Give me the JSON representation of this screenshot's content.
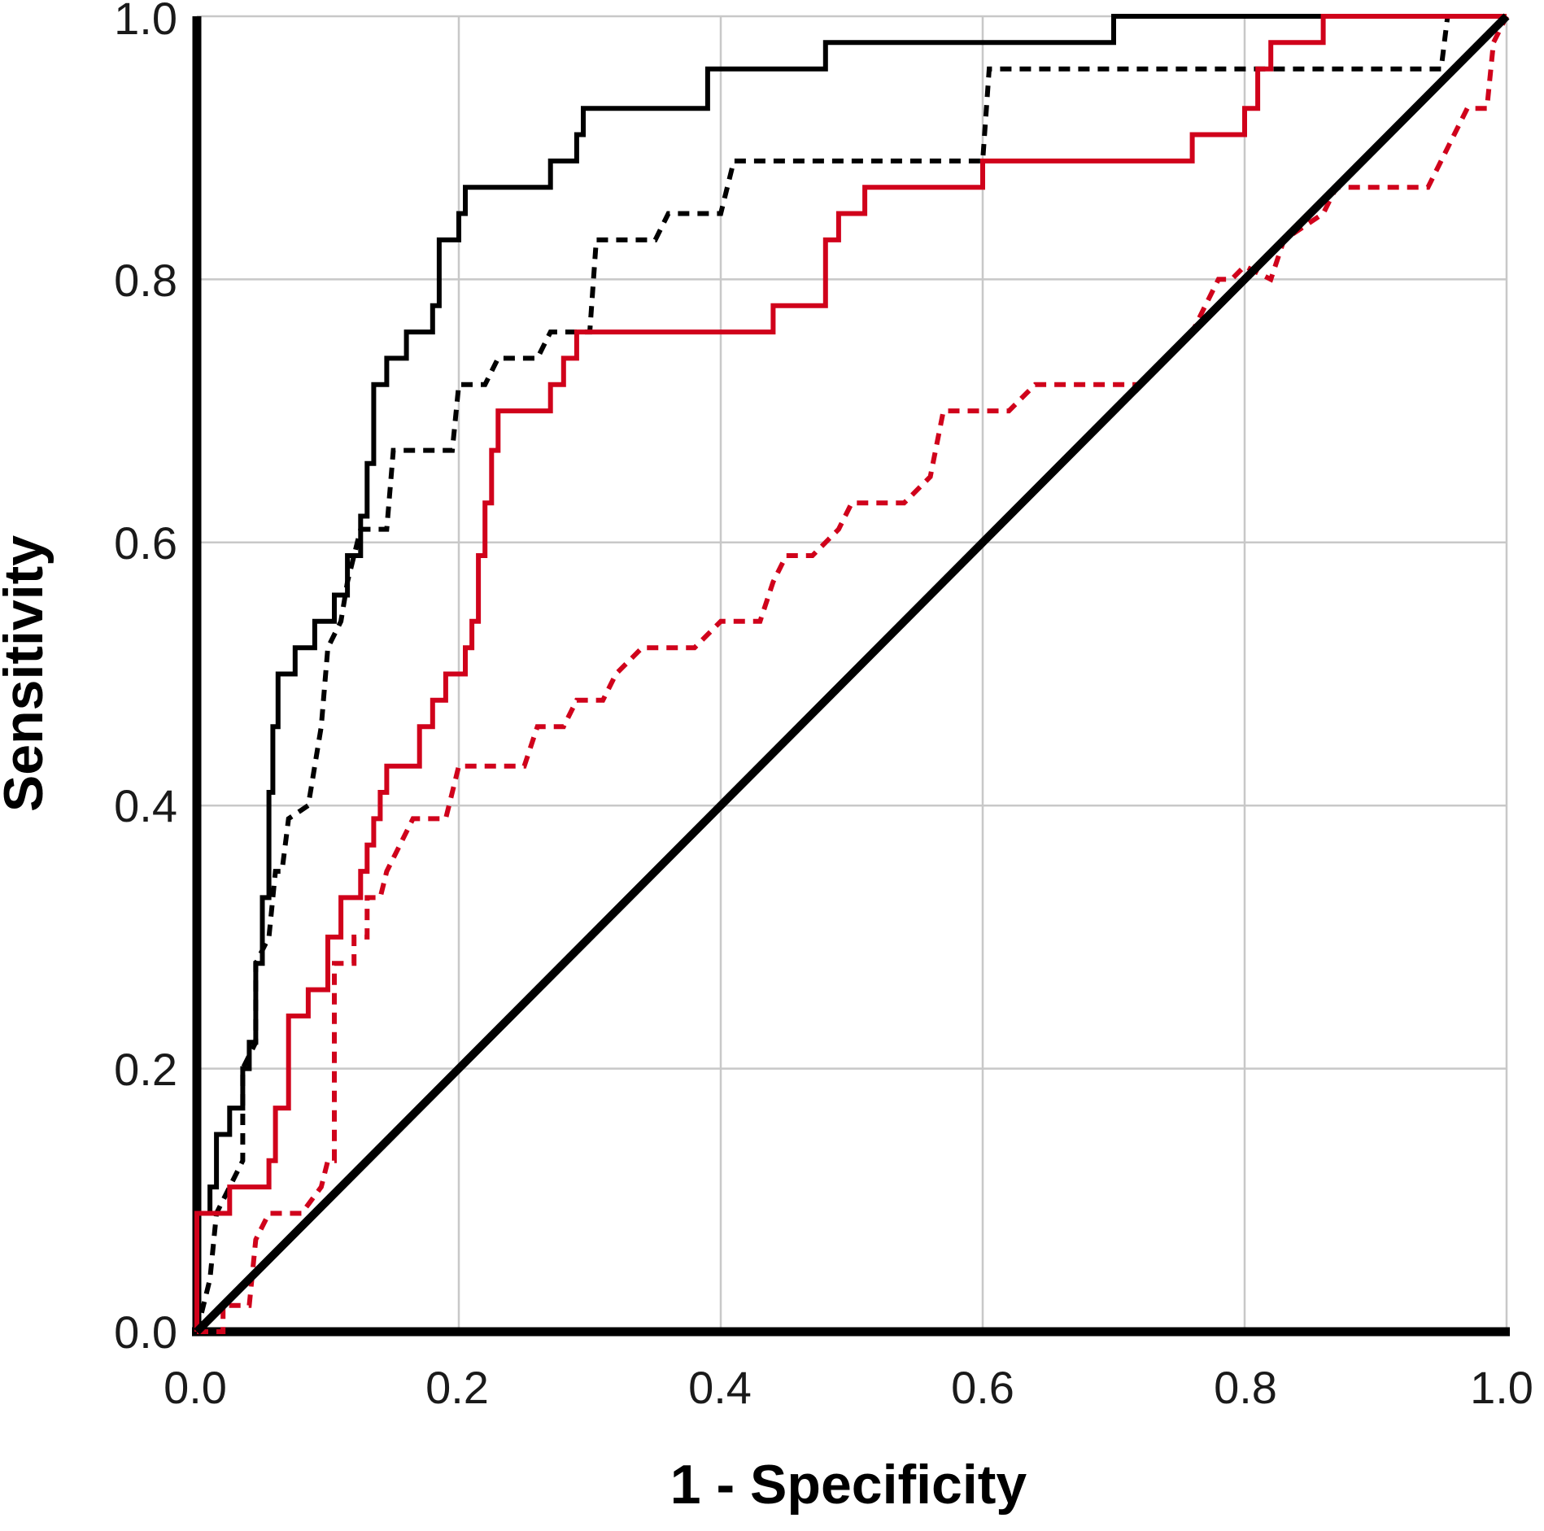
{
  "chart_data": {
    "type": "line",
    "title": "",
    "xlabel": "1 - Specificity",
    "ylabel": "Sensitivity",
    "xlim": [
      0,
      1
    ],
    "ylim": [
      0,
      1
    ],
    "x_ticks": [
      "0.0",
      "0.2",
      "0.4",
      "0.6",
      "0.8",
      "1.0"
    ],
    "y_ticks": [
      "0.0",
      "0.2",
      "0.4",
      "0.6",
      "0.8",
      "1.0"
    ],
    "grid": true,
    "legend": "none",
    "series": [
      {
        "color": "#000000",
        "line_style": "solid",
        "points": [
          [
            0,
            0
          ],
          [
            0,
            0.09
          ],
          [
            0.01,
            0.09
          ],
          [
            0.01,
            0.11
          ],
          [
            0.015,
            0.11
          ],
          [
            0.015,
            0.15
          ],
          [
            0.025,
            0.15
          ],
          [
            0.025,
            0.17
          ],
          [
            0.035,
            0.17
          ],
          [
            0.035,
            0.2
          ],
          [
            0.04,
            0.2
          ],
          [
            0.04,
            0.22
          ],
          [
            0.045,
            0.22
          ],
          [
            0.045,
            0.28
          ],
          [
            0.05,
            0.28
          ],
          [
            0.05,
            0.33
          ],
          [
            0.055,
            0.33
          ],
          [
            0.055,
            0.41
          ],
          [
            0.058,
            0.41
          ],
          [
            0.058,
            0.46
          ],
          [
            0.062,
            0.46
          ],
          [
            0.062,
            0.5
          ],
          [
            0.075,
            0.5
          ],
          [
            0.075,
            0.52
          ],
          [
            0.09,
            0.52
          ],
          [
            0.09,
            0.54
          ],
          [
            0.105,
            0.54
          ],
          [
            0.105,
            0.56
          ],
          [
            0.115,
            0.56
          ],
          [
            0.115,
            0.59
          ],
          [
            0.125,
            0.59
          ],
          [
            0.125,
            0.62
          ],
          [
            0.13,
            0.62
          ],
          [
            0.13,
            0.66
          ],
          [
            0.135,
            0.66
          ],
          [
            0.135,
            0.72
          ],
          [
            0.145,
            0.72
          ],
          [
            0.145,
            0.74
          ],
          [
            0.16,
            0.74
          ],
          [
            0.16,
            0.76
          ],
          [
            0.18,
            0.76
          ],
          [
            0.18,
            0.78
          ],
          [
            0.185,
            0.78
          ],
          [
            0.185,
            0.83
          ],
          [
            0.2,
            0.83
          ],
          [
            0.2,
            0.85
          ],
          [
            0.205,
            0.85
          ],
          [
            0.205,
            0.87
          ],
          [
            0.27,
            0.87
          ],
          [
            0.27,
            0.89
          ],
          [
            0.29,
            0.89
          ],
          [
            0.29,
            0.91
          ],
          [
            0.295,
            0.91
          ],
          [
            0.295,
            0.93
          ],
          [
            0.39,
            0.93
          ],
          [
            0.39,
            0.96
          ],
          [
            0.48,
            0.96
          ],
          [
            0.48,
            0.98
          ],
          [
            0.7,
            0.98
          ],
          [
            0.7,
            1.0
          ],
          [
            1.0,
            1.0
          ]
        ]
      },
      {
        "color": "#000000",
        "line_style": "dashed",
        "points": [
          [
            0,
            0
          ],
          [
            0.005,
            0.02
          ],
          [
            0.01,
            0.04
          ],
          [
            0.015,
            0.09
          ],
          [
            0.025,
            0.11
          ],
          [
            0.035,
            0.13
          ],
          [
            0.035,
            0.2
          ],
          [
            0.045,
            0.22
          ],
          [
            0.045,
            0.28
          ],
          [
            0.055,
            0.3
          ],
          [
            0.06,
            0.35
          ],
          [
            0.065,
            0.35
          ],
          [
            0.07,
            0.39
          ],
          [
            0.085,
            0.4
          ],
          [
            0.095,
            0.46
          ],
          [
            0.1,
            0.52
          ],
          [
            0.11,
            0.54
          ],
          [
            0.115,
            0.57
          ],
          [
            0.12,
            0.59
          ],
          [
            0.125,
            0.61
          ],
          [
            0.145,
            0.61
          ],
          [
            0.15,
            0.67
          ],
          [
            0.195,
            0.67
          ],
          [
            0.2,
            0.72
          ],
          [
            0.22,
            0.72
          ],
          [
            0.23,
            0.74
          ],
          [
            0.26,
            0.74
          ],
          [
            0.27,
            0.76
          ],
          [
            0.3,
            0.76
          ],
          [
            0.305,
            0.83
          ],
          [
            0.35,
            0.83
          ],
          [
            0.36,
            0.85
          ],
          [
            0.4,
            0.85
          ],
          [
            0.41,
            0.89
          ],
          [
            0.6,
            0.89
          ],
          [
            0.605,
            0.96
          ],
          [
            0.95,
            0.96
          ],
          [
            0.955,
            1.0
          ],
          [
            1.0,
            1.0
          ]
        ]
      },
      {
        "color": "#d0021b",
        "line_style": "solid",
        "points": [
          [
            0,
            0
          ],
          [
            0,
            0.09
          ],
          [
            0.025,
            0.09
          ],
          [
            0.025,
            0.11
          ],
          [
            0.055,
            0.11
          ],
          [
            0.055,
            0.13
          ],
          [
            0.06,
            0.13
          ],
          [
            0.06,
            0.17
          ],
          [
            0.07,
            0.17
          ],
          [
            0.07,
            0.24
          ],
          [
            0.085,
            0.24
          ],
          [
            0.085,
            0.26
          ],
          [
            0.1,
            0.26
          ],
          [
            0.1,
            0.3
          ],
          [
            0.11,
            0.3
          ],
          [
            0.11,
            0.33
          ],
          [
            0.125,
            0.33
          ],
          [
            0.125,
            0.35
          ],
          [
            0.13,
            0.35
          ],
          [
            0.13,
            0.37
          ],
          [
            0.135,
            0.37
          ],
          [
            0.135,
            0.39
          ],
          [
            0.14,
            0.39
          ],
          [
            0.14,
            0.41
          ],
          [
            0.145,
            0.41
          ],
          [
            0.145,
            0.43
          ],
          [
            0.17,
            0.43
          ],
          [
            0.17,
            0.46
          ],
          [
            0.18,
            0.46
          ],
          [
            0.18,
            0.48
          ],
          [
            0.19,
            0.48
          ],
          [
            0.19,
            0.5
          ],
          [
            0.205,
            0.5
          ],
          [
            0.205,
            0.52
          ],
          [
            0.21,
            0.52
          ],
          [
            0.21,
            0.54
          ],
          [
            0.215,
            0.54
          ],
          [
            0.215,
            0.59
          ],
          [
            0.22,
            0.59
          ],
          [
            0.22,
            0.63
          ],
          [
            0.225,
            0.63
          ],
          [
            0.225,
            0.67
          ],
          [
            0.23,
            0.67
          ],
          [
            0.23,
            0.7
          ],
          [
            0.27,
            0.7
          ],
          [
            0.27,
            0.72
          ],
          [
            0.28,
            0.72
          ],
          [
            0.28,
            0.74
          ],
          [
            0.29,
            0.74
          ],
          [
            0.29,
            0.76
          ],
          [
            0.44,
            0.76
          ],
          [
            0.44,
            0.78
          ],
          [
            0.48,
            0.78
          ],
          [
            0.48,
            0.83
          ],
          [
            0.49,
            0.83
          ],
          [
            0.49,
            0.85
          ],
          [
            0.51,
            0.85
          ],
          [
            0.51,
            0.87
          ],
          [
            0.6,
            0.87
          ],
          [
            0.6,
            0.89
          ],
          [
            0.76,
            0.89
          ],
          [
            0.76,
            0.91
          ],
          [
            0.8,
            0.91
          ],
          [
            0.8,
            0.93
          ],
          [
            0.81,
            0.93
          ],
          [
            0.81,
            0.96
          ],
          [
            0.82,
            0.96
          ],
          [
            0.82,
            0.98
          ],
          [
            0.86,
            0.98
          ],
          [
            0.86,
            1.0
          ],
          [
            1.0,
            1.0
          ]
        ]
      },
      {
        "color": "#d0021b",
        "line_style": "dashed",
        "points": [
          [
            0,
            0
          ],
          [
            0.02,
            0
          ],
          [
            0.02,
            0.02
          ],
          [
            0.04,
            0.02
          ],
          [
            0.045,
            0.07
          ],
          [
            0.055,
            0.09
          ],
          [
            0.08,
            0.09
          ],
          [
            0.095,
            0.11
          ],
          [
            0.1,
            0.13
          ],
          [
            0.105,
            0.13
          ],
          [
            0.105,
            0.28
          ],
          [
            0.12,
            0.28
          ],
          [
            0.12,
            0.3
          ],
          [
            0.13,
            0.3
          ],
          [
            0.13,
            0.33
          ],
          [
            0.14,
            0.33
          ],
          [
            0.145,
            0.35
          ],
          [
            0.155,
            0.37
          ],
          [
            0.165,
            0.39
          ],
          [
            0.19,
            0.39
          ],
          [
            0.2,
            0.43
          ],
          [
            0.25,
            0.43
          ],
          [
            0.26,
            0.46
          ],
          [
            0.28,
            0.46
          ],
          [
            0.29,
            0.48
          ],
          [
            0.31,
            0.48
          ],
          [
            0.32,
            0.5
          ],
          [
            0.34,
            0.52
          ],
          [
            0.38,
            0.52
          ],
          [
            0.4,
            0.54
          ],
          [
            0.43,
            0.54
          ],
          [
            0.44,
            0.57
          ],
          [
            0.45,
            0.59
          ],
          [
            0.47,
            0.59
          ],
          [
            0.49,
            0.61
          ],
          [
            0.5,
            0.63
          ],
          [
            0.54,
            0.63
          ],
          [
            0.56,
            0.65
          ],
          [
            0.57,
            0.7
          ],
          [
            0.62,
            0.7
          ],
          [
            0.64,
            0.72
          ],
          [
            0.72,
            0.72
          ],
          [
            0.74,
            0.74
          ],
          [
            0.76,
            0.76
          ],
          [
            0.77,
            0.78
          ],
          [
            0.78,
            0.8
          ],
          [
            0.79,
            0.8
          ],
          [
            0.8,
            0.81
          ],
          [
            0.82,
            0.8
          ],
          [
            0.83,
            0.83
          ],
          [
            0.86,
            0.85
          ],
          [
            0.87,
            0.87
          ],
          [
            0.94,
            0.87
          ],
          [
            0.95,
            0.89
          ],
          [
            0.96,
            0.91
          ],
          [
            0.97,
            0.93
          ],
          [
            0.985,
            0.93
          ],
          [
            0.99,
            0.98
          ],
          [
            1.0,
            1.0
          ]
        ]
      },
      {
        "color": "#000000",
        "line_style": "solid",
        "points": [
          [
            0,
            0
          ],
          [
            1,
            1
          ]
        ]
      }
    ]
  }
}
